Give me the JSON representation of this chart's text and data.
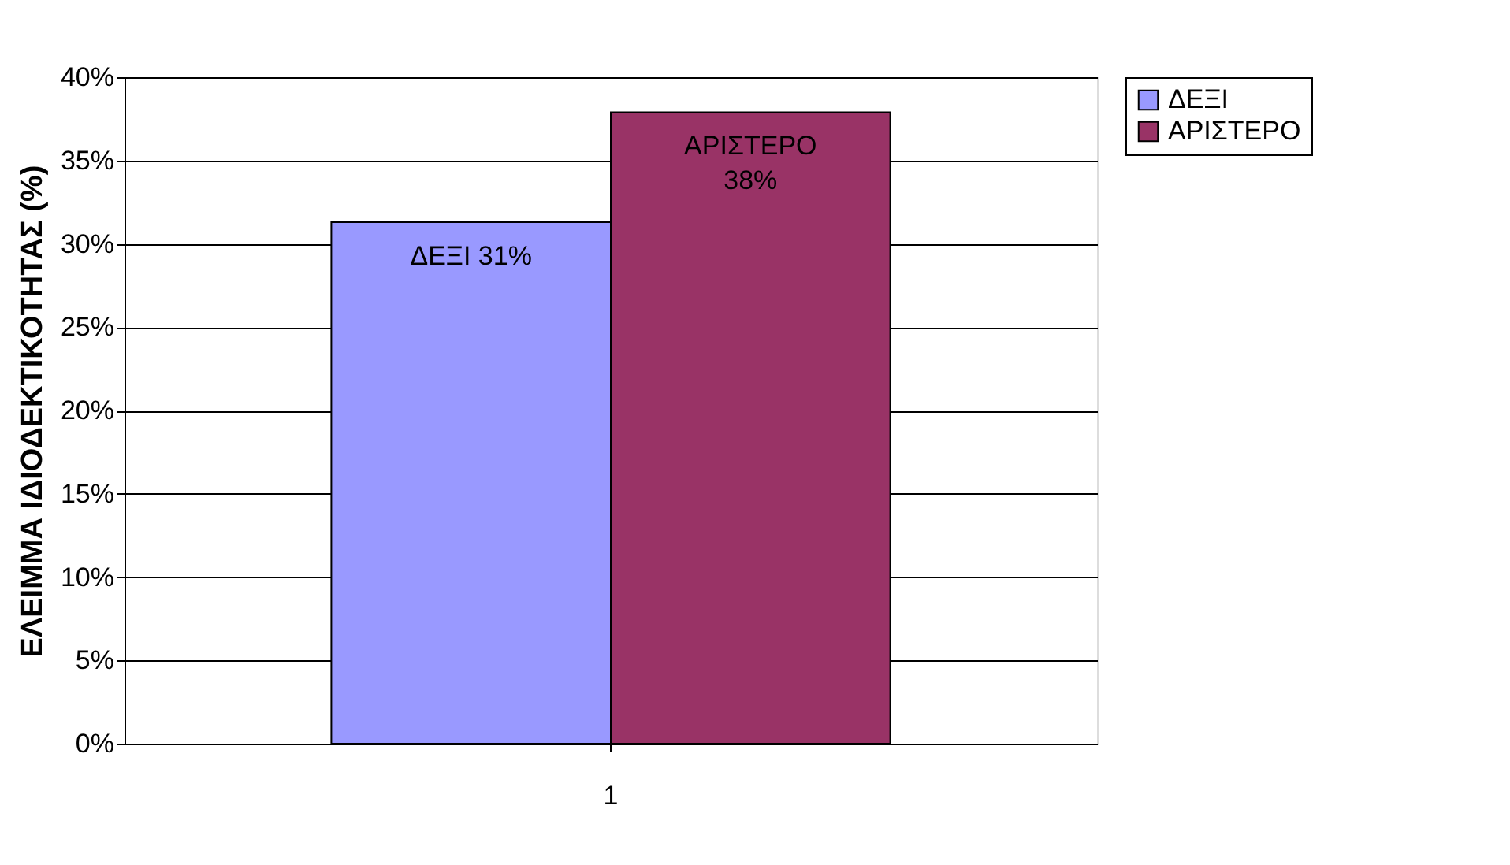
{
  "chart_data": {
    "type": "bar",
    "ylabel": "ΕΛΕΙΜΜΑ ΙΔΙΟΔΕΚΤΙΚΟΤΗΤΑΣ (%)",
    "categories": [
      "1"
    ],
    "series": [
      {
        "name": "ΔΕΞΙ",
        "color": "#9999ff",
        "values": [
          31.3
        ],
        "value_labels": [
          "ΔΕΞΙ 31%"
        ]
      },
      {
        "name": "ΑΡΙΣΤΕΡΟ",
        "color": "#993366",
        "values": [
          37.9
        ],
        "value_labels": [
          "ΑΡΙΣΤΕΡΟ 38%"
        ]
      }
    ],
    "ylim": [
      0,
      40
    ],
    "yticks": [
      {
        "value": 0,
        "label": "0%"
      },
      {
        "value": 5,
        "label": "5%"
      },
      {
        "value": 10,
        "label": "10%"
      },
      {
        "value": 15,
        "label": "15%"
      },
      {
        "value": 20,
        "label": "20%"
      },
      {
        "value": 25,
        "label": "25%"
      },
      {
        "value": 30,
        "label": "30%"
      },
      {
        "value": 35,
        "label": "35%"
      },
      {
        "value": 40,
        "label": "40%"
      }
    ],
    "grid": "y",
    "legend": "right"
  }
}
